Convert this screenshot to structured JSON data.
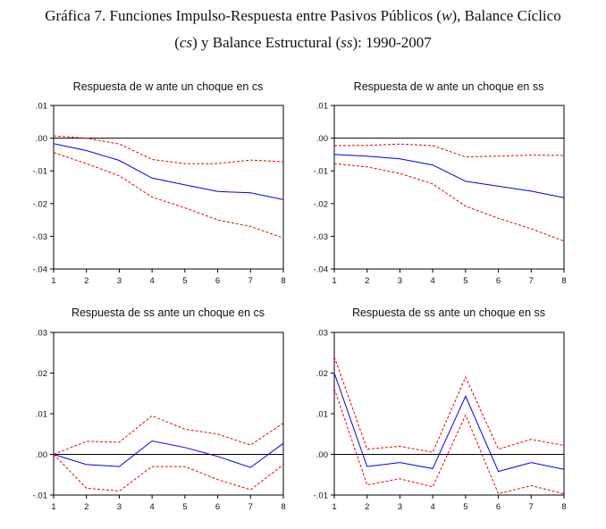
{
  "header": {
    "line1_a": "Gráfica 7. Funciones Impulso-Respuesta entre Pasivos Públicos (",
    "line1_w": "w",
    "line1_b": "), Balance Cíclico",
    "line2_a": "(",
    "line2_cs": "cs",
    "line2_b": ") y Balance Estructural (",
    "line2_ss": "ss",
    "line2_c": "): 1990-2007"
  },
  "colors": {
    "response": "#0000ee",
    "band": "#ee0000",
    "axis": "#000000"
  },
  "chart_data": [
    {
      "type": "line",
      "title": "Respuesta de w ante un choque en cs",
      "x": [
        1,
        2,
        3,
        4,
        5,
        6,
        7,
        8
      ],
      "ylim": [
        -0.04,
        0.01
      ],
      "yticks": [
        0.01,
        0.0,
        -0.01,
        -0.02,
        -0.03,
        -0.04
      ],
      "ytick_labels": [
        ".01",
        ".00",
        "-.01",
        "-.02",
        "-.03",
        "-.04"
      ],
      "xtick_labels": [
        "1",
        "2",
        "3",
        "4",
        "5",
        "6",
        "7",
        "8"
      ],
      "series": [
        {
          "name": "response",
          "style": "solid",
          "values": [
            -0.0017,
            -0.0038,
            -0.0068,
            -0.0122,
            -0.0143,
            -0.0163,
            -0.0167,
            -0.0188
          ]
        },
        {
          "name": "upper",
          "style": "dashed",
          "values": [
            0.0007,
            0.0,
            -0.0018,
            -0.0065,
            -0.0078,
            -0.0078,
            -0.0067,
            -0.0072
          ]
        },
        {
          "name": "lower",
          "style": "dashed",
          "values": [
            -0.0044,
            -0.0078,
            -0.0115,
            -0.018,
            -0.0213,
            -0.025,
            -0.027,
            -0.0305
          ]
        }
      ]
    },
    {
      "type": "line",
      "title": "Respuesta de w ante un choque en ss",
      "x": [
        1,
        2,
        3,
        4,
        5,
        6,
        7,
        8
      ],
      "ylim": [
        -0.04,
        0.01
      ],
      "yticks": [
        0.01,
        0.0,
        -0.01,
        -0.02,
        -0.03,
        -0.04
      ],
      "ytick_labels": [
        ".01",
        ".00",
        "-.01",
        "-.02",
        "-.03",
        "-.04"
      ],
      "xtick_labels": [
        "1",
        "2",
        "3",
        "4",
        "5",
        "6",
        "7",
        "8"
      ],
      "series": [
        {
          "name": "response",
          "style": "solid",
          "values": [
            -0.005,
            -0.0055,
            -0.0063,
            -0.0082,
            -0.0132,
            -0.0147,
            -0.0162,
            -0.0182
          ]
        },
        {
          "name": "upper",
          "style": "dashed",
          "values": [
            -0.0023,
            -0.0022,
            -0.0018,
            -0.0023,
            -0.0057,
            -0.0055,
            -0.0052,
            -0.0053
          ]
        },
        {
          "name": "lower",
          "style": "dashed",
          "values": [
            -0.0078,
            -0.0088,
            -0.0108,
            -0.014,
            -0.0208,
            -0.0245,
            -0.0277,
            -0.0315
          ]
        }
      ]
    },
    {
      "type": "line",
      "title": "Respuesta de ss ante un choque en cs",
      "x": [
        1,
        2,
        3,
        4,
        5,
        6,
        7,
        8
      ],
      "ylim": [
        -0.01,
        0.03
      ],
      "yticks": [
        0.03,
        0.02,
        0.01,
        0.0,
        -0.01
      ],
      "ytick_labels": [
        ".03",
        ".02",
        ".01",
        ".00",
        "-.01"
      ],
      "xtick_labels": [
        "1",
        "2",
        "3",
        "4",
        "5",
        "6",
        "7",
        "8"
      ],
      "series": [
        {
          "name": "response",
          "style": "solid",
          "values": [
            0.0,
            -0.0025,
            -0.003,
            0.0033,
            0.0017,
            -0.0005,
            -0.0032,
            0.0027
          ]
        },
        {
          "name": "upper",
          "style": "dashed",
          "values": [
            0.0,
            0.0032,
            0.003,
            0.0095,
            0.0062,
            0.005,
            0.0023,
            0.0077
          ]
        },
        {
          "name": "lower",
          "style": "dashed",
          "values": [
            0.0,
            -0.0083,
            -0.009,
            -0.003,
            -0.003,
            -0.0062,
            -0.0087,
            -0.0025
          ]
        }
      ]
    },
    {
      "type": "line",
      "title": "Respuesta de ss ante un choque en ss",
      "x": [
        1,
        2,
        3,
        4,
        5,
        6,
        7,
        8
      ],
      "ylim": [
        -0.01,
        0.03
      ],
      "yticks": [
        0.03,
        0.02,
        0.01,
        0.0,
        -0.01
      ],
      "ytick_labels": [
        ".03",
        ".02",
        ".01",
        ".00",
        "-.01"
      ],
      "xtick_labels": [
        "1",
        "2",
        "3",
        "4",
        "5",
        "6",
        "7",
        "8"
      ],
      "series": [
        {
          "name": "response",
          "style": "solid",
          "values": [
            0.02,
            -0.003,
            -0.002,
            -0.0035,
            0.0143,
            -0.0042,
            -0.002,
            -0.0037
          ]
        },
        {
          "name": "upper",
          "style": "dashed",
          "values": [
            0.024,
            0.0013,
            0.002,
            0.0005,
            0.019,
            0.0013,
            0.0037,
            0.0022
          ]
        },
        {
          "name": "lower",
          "style": "dashed",
          "values": [
            0.0162,
            -0.0075,
            -0.006,
            -0.008,
            0.0097,
            -0.0097,
            -0.0077,
            -0.0097
          ]
        }
      ]
    }
  ]
}
